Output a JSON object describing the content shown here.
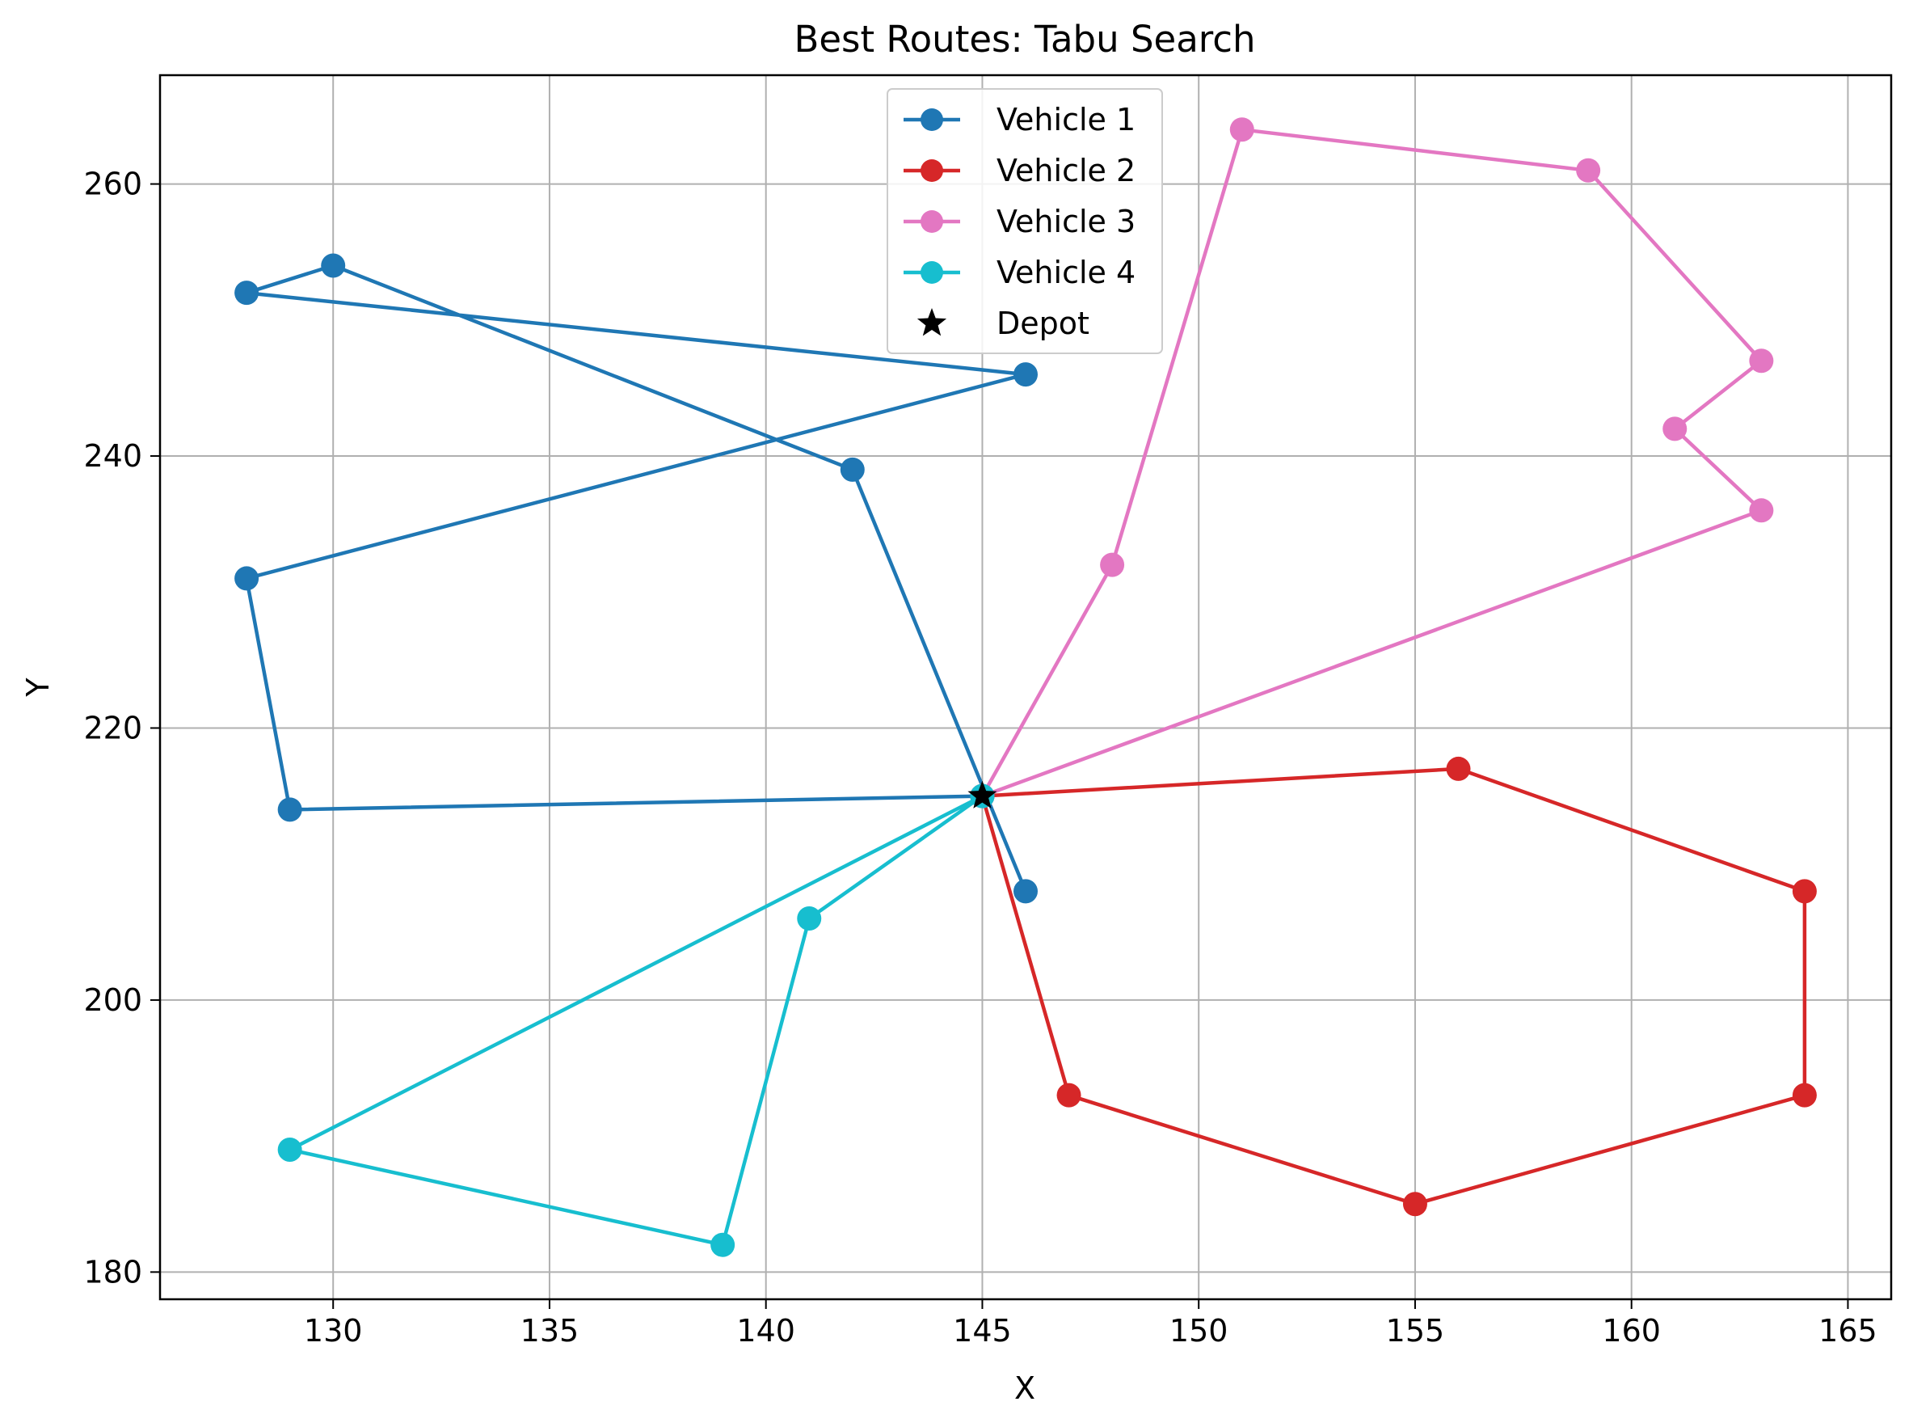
{
  "chart_data": {
    "type": "line",
    "title": "Best Routes: Tabu Search",
    "xlabel": "X",
    "ylabel": "Y",
    "xlim": [
      126,
      166
    ],
    "ylim": [
      178,
      268
    ],
    "xticks": [
      130,
      135,
      140,
      145,
      150,
      155,
      160,
      165
    ],
    "yticks": [
      180,
      200,
      220,
      240,
      260
    ],
    "grid": true,
    "legend_position": "top-center",
    "depot": {
      "name": "Depot",
      "x": 145,
      "y": 215,
      "color": "#000000",
      "marker": "star"
    },
    "series": [
      {
        "name": "Vehicle 1",
        "color": "#1f77b4",
        "points": [
          [
            145,
            215
          ],
          [
            129,
            214
          ],
          [
            128,
            231
          ],
          [
            146,
            246
          ],
          [
            128,
            252
          ],
          [
            130,
            254
          ],
          [
            142,
            239
          ],
          [
            146,
            208
          ]
        ]
      },
      {
        "name": "Vehicle 2",
        "color": "#d62728",
        "points": [
          [
            145,
            215
          ],
          [
            156,
            217
          ],
          [
            164,
            208
          ],
          [
            164,
            193
          ],
          [
            155,
            185
          ],
          [
            147,
            193
          ],
          [
            145,
            215
          ]
        ]
      },
      {
        "name": "Vehicle 3",
        "color": "#e377c2",
        "points": [
          [
            145,
            215
          ],
          [
            163,
            236
          ],
          [
            161,
            242
          ],
          [
            163,
            247
          ],
          [
            159,
            261
          ],
          [
            151,
            264
          ],
          [
            148,
            232
          ],
          [
            145,
            215
          ]
        ]
      },
      {
        "name": "Vehicle 4",
        "color": "#17becf",
        "points": [
          [
            145,
            215
          ],
          [
            129,
            189
          ],
          [
            139,
            182
          ],
          [
            141,
            206
          ],
          [
            145,
            215
          ]
        ]
      }
    ]
  }
}
